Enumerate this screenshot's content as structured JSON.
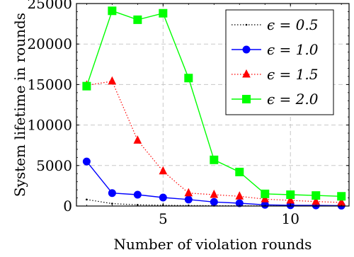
{
  "chart_data": {
    "type": "line",
    "xlabel": "Number of violation rounds",
    "ylabel": "System lifetime in rounds",
    "xlim": [
      1.6,
      12.3
    ],
    "ylim": [
      0,
      25000
    ],
    "x_ticks": [
      5,
      10
    ],
    "x_tick_labels": [
      "5",
      "10"
    ],
    "y_ticks": [
      0,
      5000,
      10000,
      15000,
      20000,
      25000
    ],
    "y_tick_labels": [
      "0",
      "5000",
      "10000",
      "15000",
      "20000",
      "25000"
    ],
    "grid": true,
    "legend_position": "top-right",
    "series": [
      {
        "name": "ϵ = 0.5",
        "color": "#000000",
        "line_style": "dotted",
        "marker": "dot",
        "x": [
          2,
          3,
          4,
          5,
          6,
          7,
          8,
          9,
          10,
          11,
          12
        ],
        "values": [
          800,
          300,
          150,
          100,
          60,
          40,
          30,
          20,
          15,
          10,
          10
        ]
      },
      {
        "name": "ϵ = 1.0",
        "color": "#0000ff",
        "line_style": "solid",
        "marker": "circle",
        "x": [
          2,
          3,
          4,
          5,
          6,
          7,
          8,
          9,
          10,
          11,
          12
        ],
        "values": [
          5500,
          1600,
          1400,
          1050,
          800,
          500,
          350,
          150,
          100,
          80,
          50
        ]
      },
      {
        "name": "ϵ = 1.5",
        "color": "#ff0000",
        "line_style": "dotted",
        "marker": "triangle",
        "x": [
          2,
          3,
          4,
          5,
          6,
          7,
          8,
          9,
          10,
          11,
          12
        ],
        "values": [
          14900,
          15400,
          8100,
          4300,
          1600,
          1400,
          1200,
          850,
          700,
          550,
          450
        ]
      },
      {
        "name": "ϵ = 2.0",
        "color": "#00ff00",
        "line_style": "solid",
        "marker": "square",
        "x": [
          2,
          3,
          4,
          5,
          6,
          7,
          8,
          9,
          10,
          11,
          12
        ],
        "values": [
          14800,
          24100,
          23000,
          23800,
          15800,
          5700,
          4200,
          1500,
          1400,
          1300,
          1200
        ]
      }
    ]
  }
}
